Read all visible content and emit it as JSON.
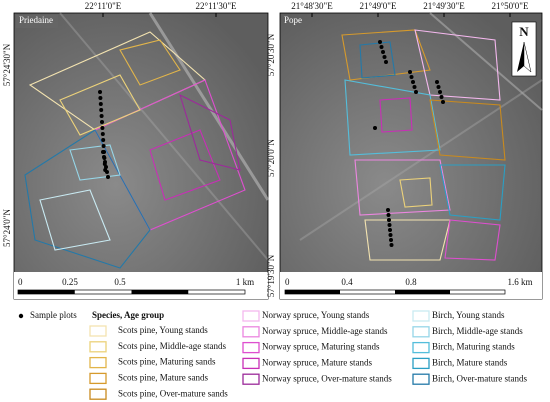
{
  "maps": [
    {
      "name": "Priedaine",
      "lon_labels": [
        "22°11'0\"E",
        "22°11'30\"E"
      ],
      "lat_labels": [
        "57°24'30\"N",
        "57°24'0\"N"
      ],
      "scale_labels": [
        "0",
        "0.25",
        "0.5",
        "1 km"
      ]
    },
    {
      "name": "Pope",
      "north": "N",
      "lon_labels": [
        "21°48'30\"E",
        "21°49'0\"E",
        "21°49'30\"E",
        "21°50'0\"E"
      ],
      "lat_labels": [
        "57°20'30\"N",
        "57°20'0\"N",
        "57°19'30\"N"
      ],
      "scale_labels": [
        "0",
        "0.4",
        "0.8",
        "1.6 km"
      ]
    }
  ],
  "legend": {
    "sample_plots": "Sample plots",
    "header": "Species, Age group",
    "columns": [
      [
        {
          "label": "Scots pine, Young stands",
          "color": "#f3e3b0"
        },
        {
          "label": "Scots pine, Middle-age stands",
          "color": "#ecd27a"
        },
        {
          "label": "Scots pine, Maturing sands",
          "color": "#e2b54a"
        },
        {
          "label": "Scots pine, Mature sands",
          "color": "#d69a2c"
        },
        {
          "label": "Scots pine, Over-mature sands",
          "color": "#c98a1e"
        }
      ],
      [
        {
          "label": "Norway spruce, Young stands",
          "color": "#f4b8ee"
        },
        {
          "label": "Norway spruce, Middle-age stands",
          "color": "#ec86e0"
        },
        {
          "label": "Norway spruce, Maturing stands",
          "color": "#de4fcf"
        },
        {
          "label": "Norway spruce, Mature stands",
          "color": "#c82fb6"
        },
        {
          "label": "Norway spruce, Over-mature stands",
          "color": "#9c2a9a"
        }
      ],
      [
        {
          "label": "Birch, Young stands",
          "color": "#c9eaf2"
        },
        {
          "label": "Birch, Middle-age stands",
          "color": "#96d6e8"
        },
        {
          "label": "Birch, Maturing stands",
          "color": "#54bedb"
        },
        {
          "label": "Birch, Mature stands",
          "color": "#2a9fc4"
        },
        {
          "label": "Birch, Over-mature stands",
          "color": "#2479a8"
        }
      ]
    ]
  }
}
